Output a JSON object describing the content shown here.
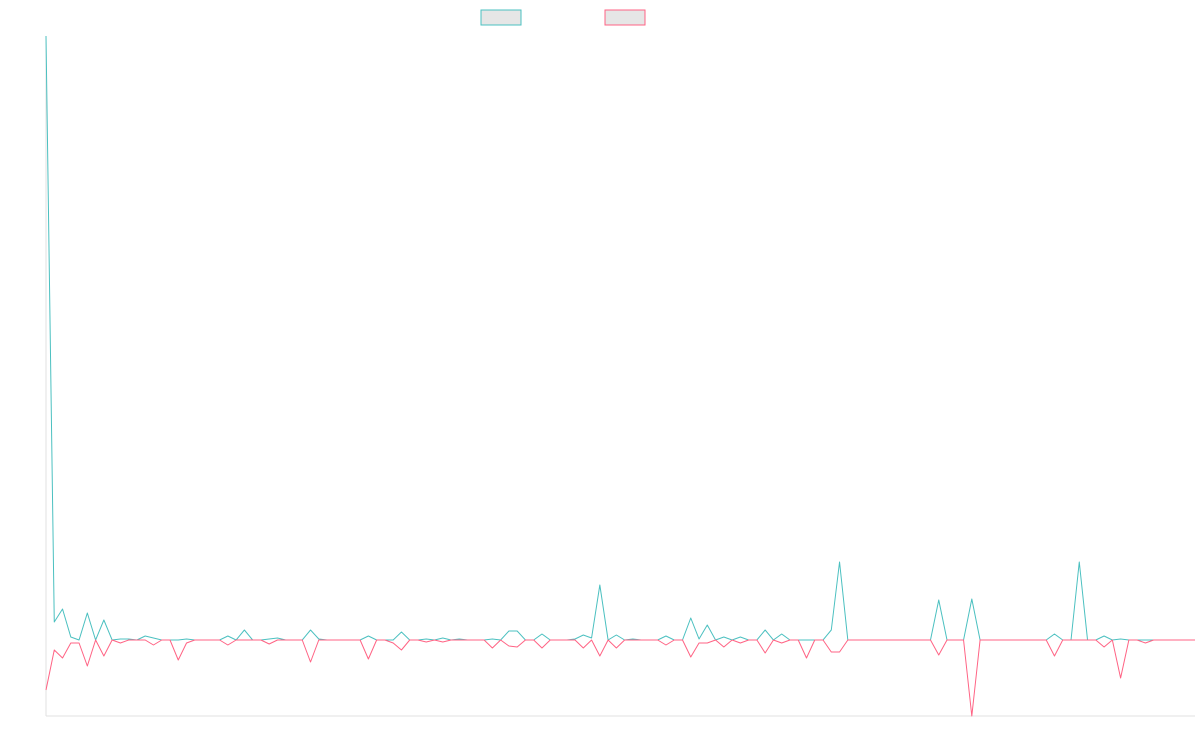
{
  "chart_data": {
    "type": "line",
    "categories": [
      null,
      null,
      null,
      null,
      null,
      null,
      null,
      null,
      null,
      null,
      null,
      null,
      null,
      null,
      null,
      null,
      null,
      null,
      null,
      null,
      null,
      null,
      null,
      null,
      null,
      null,
      null,
      null,
      null,
      null,
      null,
      null,
      null,
      null,
      null,
      null,
      null,
      null,
      null,
      null,
      null,
      null,
      null,
      null,
      null,
      null,
      null,
      null,
      null,
      null,
      null,
      null,
      null,
      null,
      null,
      null,
      null,
      null,
      null,
      null,
      null,
      null,
      null,
      null,
      null,
      null,
      null,
      null,
      null,
      null,
      null,
      null,
      null,
      null,
      null,
      null,
      null,
      null,
      null,
      null,
      null,
      null,
      null,
      null,
      null,
      null,
      null,
      null,
      null,
      null,
      null,
      null,
      null,
      null,
      null,
      null,
      null,
      null,
      null,
      null,
      null,
      null,
      null,
      null,
      null,
      null,
      null,
      null,
      null,
      null,
      null,
      null,
      null,
      null,
      null,
      null,
      null,
      null,
      null,
      null,
      null,
      null,
      null,
      null,
      null,
      null,
      null,
      null,
      null,
      null,
      null,
      null,
      null,
      null,
      null,
      null,
      null,
      null,
      null,
      null
    ],
    "series": [
      {
        "color": "#4bc0c0",
        "values": [
          604,
          18,
          31,
          3,
          0,
          27,
          0,
          20,
          0,
          1,
          1,
          0,
          4,
          2,
          0,
          0,
          0,
          1,
          0,
          0,
          0,
          0,
          4,
          0,
          10,
          0,
          0,
          1,
          2,
          0,
          0,
          0,
          10,
          1,
          0,
          0,
          0,
          0,
          0,
          4,
          0,
          0,
          0,
          8,
          0,
          0,
          1,
          0,
          2,
          0,
          1,
          0,
          0,
          0,
          1,
          0,
          9,
          9,
          0,
          0,
          6,
          0,
          0,
          0,
          1,
          5,
          2,
          55,
          0,
          5,
          0,
          1,
          0,
          0,
          0,
          4,
          0,
          0,
          22,
          1,
          15,
          0,
          3,
          0,
          3,
          0,
          0,
          10,
          0,
          6,
          0,
          0,
          0,
          0,
          0,
          10,
          78,
          0,
          0,
          0,
          0,
          0,
          0,
          0,
          0,
          0,
          0,
          0,
          40,
          0,
          0,
          0,
          41,
          0,
          0,
          0,
          0,
          0,
          0,
          0,
          0,
          0,
          6,
          0,
          0,
          78,
          0,
          0,
          4,
          0,
          1,
          0,
          0,
          0,
          0,
          0,
          0,
          0,
          0,
          0
        ]
      },
      {
        "color": "#ff6384",
        "values": [
          -50,
          -10,
          -18,
          -3,
          -3,
          -26,
          0,
          -16,
          0,
          -3,
          0,
          0,
          0,
          -5,
          0,
          0,
          -20,
          -3,
          0,
          0,
          0,
          0,
          -5,
          0,
          0,
          0,
          0,
          -4,
          0,
          0,
          0,
          0,
          -22,
          0,
          0,
          0,
          0,
          0,
          0,
          -19,
          0,
          0,
          -3,
          -10,
          0,
          0,
          -2,
          0,
          -2,
          0,
          0,
          0,
          0,
          0,
          -8,
          0,
          -6,
          -7,
          0,
          0,
          -8,
          0,
          0,
          0,
          0,
          -8,
          0,
          -16,
          0,
          -8,
          0,
          0,
          0,
          0,
          0,
          -5,
          0,
          0,
          -17,
          -3,
          -3,
          0,
          -7,
          0,
          -3,
          0,
          0,
          -13,
          0,
          -3,
          0,
          0,
          -18,
          0,
          0,
          -12,
          -12,
          0,
          0,
          0,
          0,
          0,
          0,
          0,
          0,
          0,
          0,
          0,
          -15,
          0,
          0,
          0,
          -76,
          0,
          0,
          0,
          0,
          0,
          0,
          0,
          0,
          0,
          -16,
          0,
          0,
          0,
          0,
          0,
          -7,
          0,
          -38,
          0,
          0,
          -3,
          0,
          0,
          0,
          0,
          0,
          0
        ]
      }
    ],
    "ylim": [
      -76,
      604
    ]
  }
}
